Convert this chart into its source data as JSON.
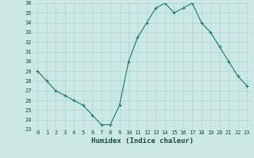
{
  "x": [
    0,
    1,
    2,
    3,
    4,
    5,
    6,
    7,
    8,
    9,
    10,
    11,
    12,
    13,
    14,
    15,
    16,
    17,
    18,
    19,
    20,
    21,
    22,
    23
  ],
  "y": [
    29,
    28,
    27,
    26.5,
    26,
    25.5,
    24.5,
    23.5,
    23.5,
    25.5,
    30,
    32.5,
    34,
    35.5,
    36,
    35,
    35.5,
    36,
    34,
    33,
    31.5,
    30,
    28.5,
    27.5
  ],
  "xlabel": "Humidex (Indice chaleur)",
  "ylim": [
    23,
    36
  ],
  "yticks": [
    23,
    24,
    25,
    26,
    27,
    28,
    29,
    30,
    31,
    32,
    33,
    34,
    35,
    36
  ],
  "xticks": [
    0,
    1,
    2,
    3,
    4,
    5,
    6,
    7,
    8,
    9,
    10,
    11,
    12,
    13,
    14,
    15,
    16,
    17,
    18,
    19,
    20,
    21,
    22,
    23
  ],
  "line_color": "#1a7a6e",
  "bg_color": "#cce8e4",
  "grid_color": "#afd4cf",
  "tick_label_color": "#1a4a44",
  "xlabel_color": "#1a4a44"
}
